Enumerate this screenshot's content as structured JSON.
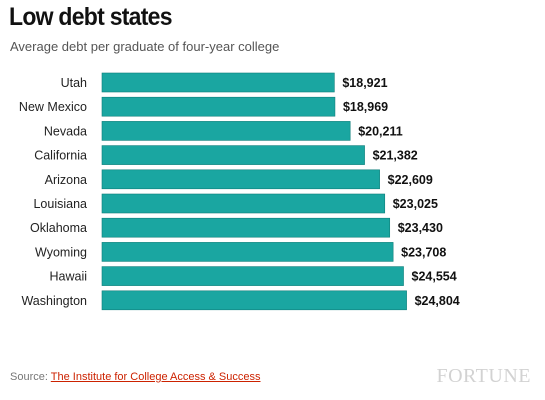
{
  "title": "Low debt states",
  "subtitle": "Average debt per graduate of four-year college",
  "footer": {
    "source_prefix": "Source: ",
    "source_link": "The Institute for College Access & Success",
    "brand": "FORTUNE"
  },
  "colors": {
    "bar": "#1aa6a1",
    "bar_stroke": "#0f7f7b",
    "label": "#222222",
    "value": "#111111"
  },
  "chart_data": {
    "type": "bar",
    "orientation": "horizontal",
    "categories": [
      "Utah",
      "New Mexico",
      "Nevada",
      "California",
      "Arizona",
      "Louisiana",
      "Oklahoma",
      "Wyoming",
      "Hawaii",
      "Washington"
    ],
    "values": [
      18921,
      18969,
      20211,
      21382,
      22609,
      23025,
      23430,
      23708,
      24554,
      24804
    ],
    "value_labels": [
      "$18,921",
      "$18,969",
      "$20,211",
      "$21,382",
      "$22,609",
      "$23,025",
      "$23,430",
      "$23,708",
      "$24,554",
      "$24,804"
    ],
    "title": "Low debt states",
    "subtitle": "Average debt per graduate of four-year college",
    "xlabel": "",
    "ylabel": "",
    "grid": false,
    "legend": "none"
  }
}
